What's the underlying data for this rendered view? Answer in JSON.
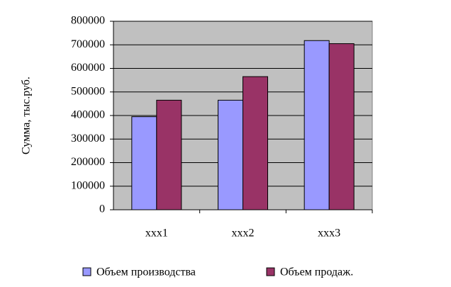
{
  "chart_data": {
    "type": "bar",
    "categories": [
      "xxx1",
      "xxx2",
      "xxx3"
    ],
    "series": [
      {
        "name": "Объем производства",
        "color": "#9999ff",
        "values": [
          395000,
          465000,
          718000
        ]
      },
      {
        "name": "Объем продаж.",
        "color": "#993366",
        "values": [
          465000,
          565000,
          705000
        ]
      }
    ],
    "y_label": "Сумма, тыс.руб.",
    "ylim": [
      0,
      800000
    ],
    "yticks": [
      0,
      100000,
      200000,
      300000,
      400000,
      500000,
      600000,
      700000,
      800000
    ],
    "grid": true,
    "legend": "bottom"
  }
}
